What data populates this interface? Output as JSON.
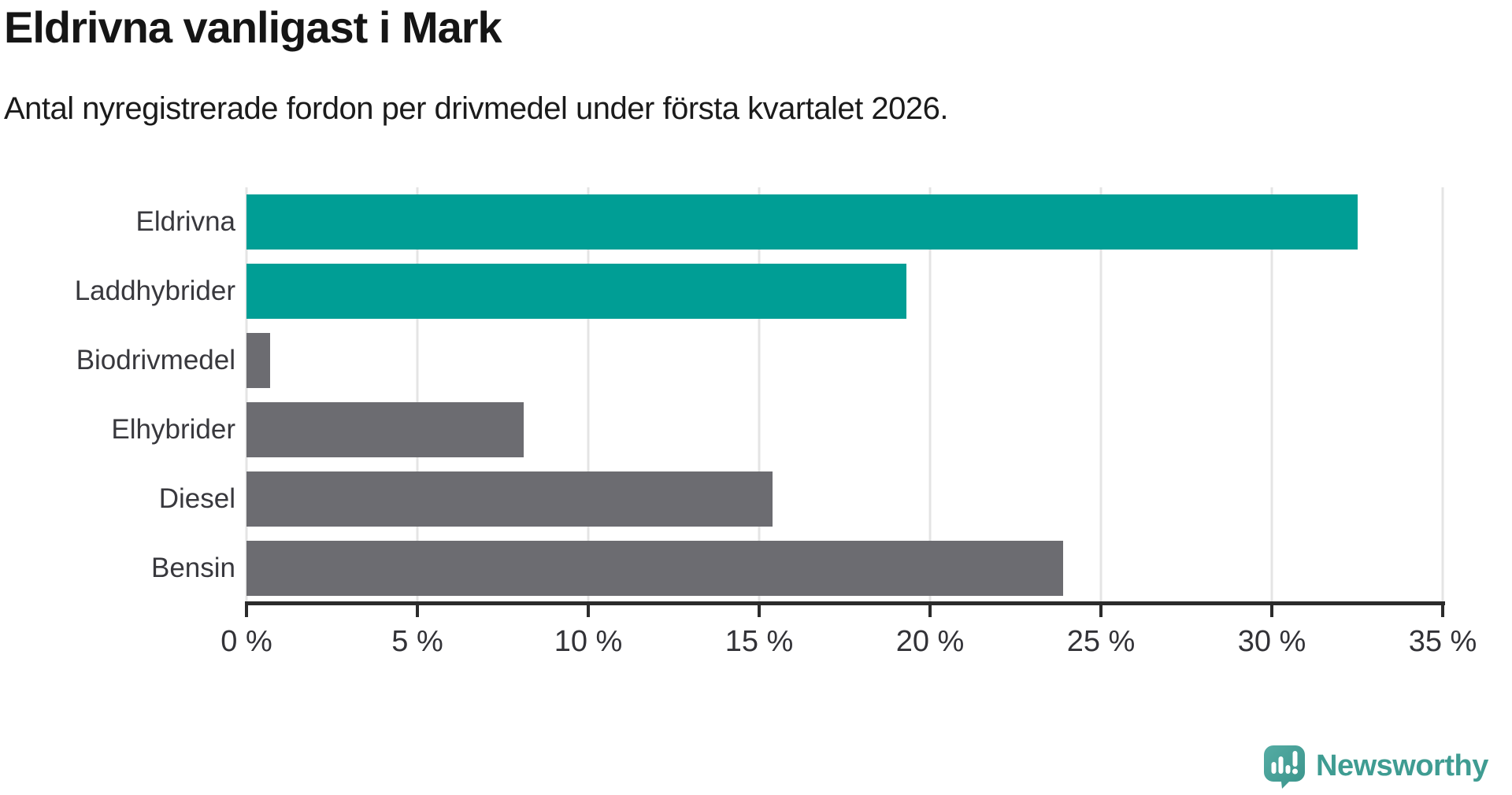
{
  "header": {
    "title": "Eldrivna vanligast i Mark",
    "subtitle": "Antal nyregistrerade fordon per drivmedel under första kvartalet 2026."
  },
  "chart_data": {
    "type": "bar",
    "orientation": "horizontal",
    "title": "Eldrivna vanligast i Mark",
    "subtitle": "Antal nyregistrerade fordon per drivmedel under första kvartalet 2026.",
    "unit": "%",
    "xlim": [
      0,
      35
    ],
    "grid": true,
    "categories": [
      "Eldrivna",
      "Laddhybrider",
      "Biodrivmedel",
      "Elhybrider",
      "Diesel",
      "Bensin"
    ],
    "values": [
      32.5,
      19.3,
      0.7,
      8.1,
      15.4,
      23.9
    ],
    "bars": [
      {
        "label": "Eldrivna",
        "value": 32.5,
        "color": "#009e95"
      },
      {
        "label": "Laddhybrider",
        "value": 19.3,
        "color": "#009e95"
      },
      {
        "label": "Biodrivmedel",
        "value": 0.7,
        "color": "#6c6c71"
      },
      {
        "label": "Elhybrider",
        "value": 8.1,
        "color": "#6c6c71"
      },
      {
        "label": "Diesel",
        "value": 15.4,
        "color": "#6c6c71"
      },
      {
        "label": "Bensin",
        "value": 23.9,
        "color": "#6c6c71"
      }
    ],
    "x_ticks": [
      {
        "value": 0,
        "label": "0 %"
      },
      {
        "value": 5,
        "label": "5 %"
      },
      {
        "value": 10,
        "label": "10 %"
      },
      {
        "value": 15,
        "label": "15 %"
      },
      {
        "value": 20,
        "label": "20 %"
      },
      {
        "value": 25,
        "label": "25 %"
      },
      {
        "value": 30,
        "label": "30 %"
      },
      {
        "value": 35,
        "label": "35 %"
      }
    ]
  },
  "style": {
    "highlight_color": "#009e95",
    "default_bar_color": "#6c6c71",
    "grid_color": "#e4e4e4",
    "axis_color": "#2b2b2b",
    "title_color": "#151515",
    "label_color": "#38383d",
    "logo_color": "#3f9c92"
  },
  "branding": {
    "logo_text": "Newsworthy",
    "logo_icon": "newsworthy-speech-bubble-chart-icon"
  }
}
